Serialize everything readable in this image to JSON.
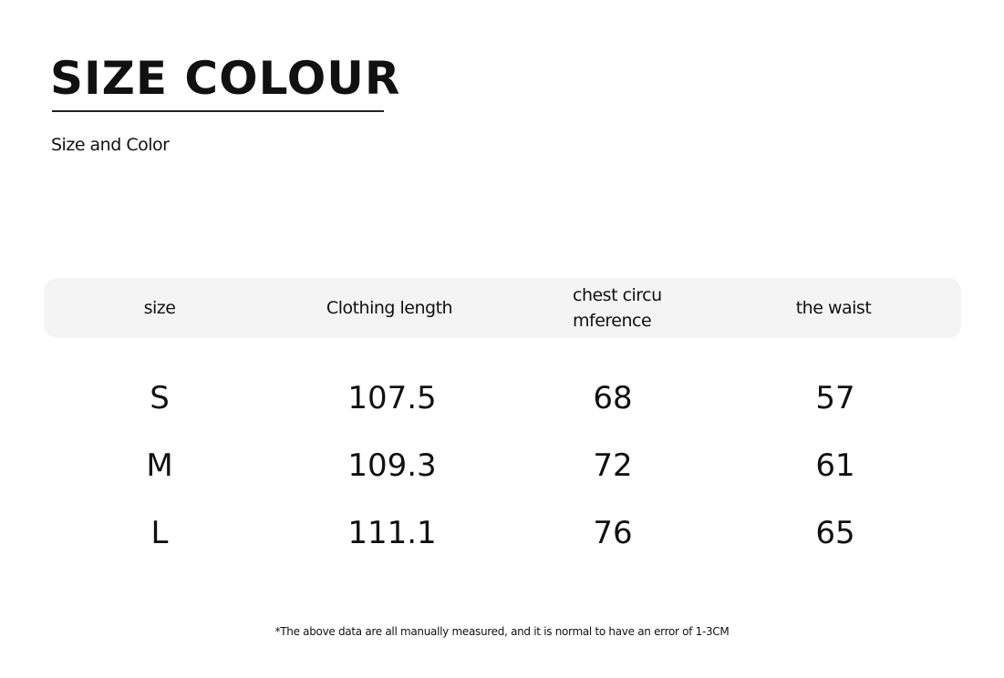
{
  "header": {
    "title": "SIZE COLOUR",
    "subtitle": "Size and Color"
  },
  "table": {
    "columns": [
      "size",
      "Clothing length",
      "chest circu\nmference",
      "the waist"
    ],
    "rows": [
      [
        "S",
        "107.5",
        "68",
        "57"
      ],
      [
        "M",
        "109.3",
        "72",
        "61"
      ],
      [
        "L",
        "111.1",
        "76",
        "65"
      ]
    ]
  },
  "footnote": "*The above data are all manually measured, and it is normal to have an error of 1-3CM"
}
